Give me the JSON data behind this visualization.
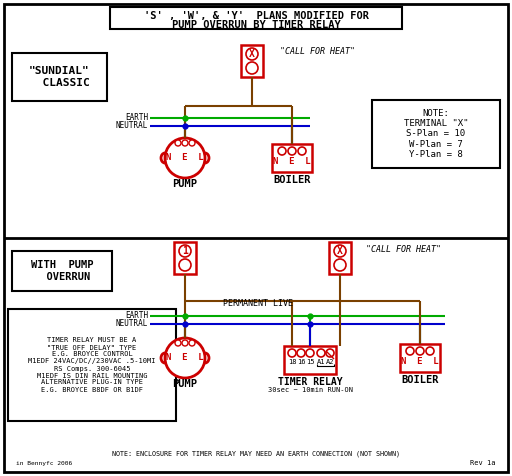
{
  "title_line1": "'S' , 'W', & 'Y'  PLANS MODIFIED FOR",
  "title_line2": "PUMP OVERRUN BY TIMER RELAY",
  "bg_color": "#ffffff",
  "red": "#cc0000",
  "green": "#00aa00",
  "blue": "#0000cc",
  "brown": "#7a4000",
  "black": "#000000",
  "section1_label": "\"SUNDIAL\"\n  CLASSIC",
  "section2_label": "WITH  PUMP\n  OVERRUN",
  "note_top": "NOTE:\nTERMINAL \"X\"\nS-Plan = 10\nW-Plan = 7\nY-Plan = 8",
  "timer_note_lines": [
    "TIMER RELAY MUST BE A",
    "\"TRUE OFF DELAY\" TYPE",
    "E.G. BROYCE CONTROL",
    "M1EDF 24VAC/DC//230VAC .5-10MI",
    "RS Comps. 300-6045",
    "M1EDF IS DIN RAIL MOUNTING",
    "ALTERNATIVE PLUG-IN TYPE",
    "E.G. BROYCE B8DF OR B1DF"
  ],
  "bottom_note": "NOTE: ENCLOSURE FOR TIMER RELAY MAY NEED AN EARTH CONNECTION (NOT SHOWN)",
  "pump_label": "PUMP",
  "boiler_label": "BOILER",
  "timer_label": "TIMER RELAY",
  "timer_sublabel": "30sec ~ 10min RUN-ON",
  "call_for_heat": "\"CALL FOR HEAT\"",
  "permanent_live": "PERMANENT LIVE",
  "earth_label": "EARTH",
  "neutral_label": "NEUTRAL",
  "rev_label": "Rev 1a",
  "credit": "in Bennyfc 2006"
}
